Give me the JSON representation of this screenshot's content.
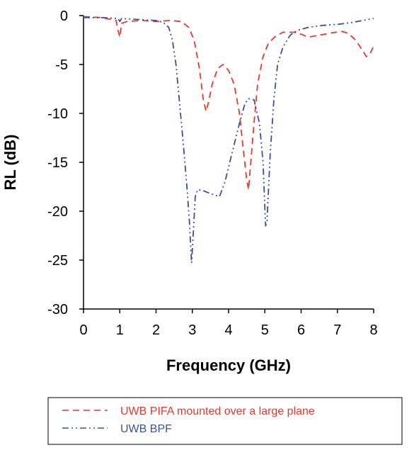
{
  "chart_data": {
    "type": "line",
    "title": "",
    "xlabel": "Frequency (GHz)",
    "ylabel": "RL (dB)",
    "xlim": [
      0,
      8
    ],
    "ylim": [
      -30,
      0
    ],
    "x_ticks": [
      "0",
      "1",
      "2",
      "3",
      "4",
      "5",
      "6",
      "7",
      "8"
    ],
    "y_ticks": [
      "0",
      "-5",
      "-10",
      "-15",
      "-20",
      "-25",
      "-30"
    ],
    "grid": false,
    "legend_position": "bottom",
    "series": [
      {
        "name": "UWB PIFA mounted over a large plane",
        "color": "#e8372f",
        "dash": "dashed",
        "points": [
          [
            0,
            -0.1
          ],
          [
            0.5,
            -0.2
          ],
          [
            0.9,
            -0.5
          ],
          [
            0.95,
            -1.5
          ],
          [
            1.0,
            -2.2
          ],
          [
            1.05,
            -0.8
          ],
          [
            1.2,
            -0.6
          ],
          [
            1.6,
            -0.5
          ],
          [
            2.0,
            -0.6
          ],
          [
            2.4,
            -0.5
          ],
          [
            2.7,
            -0.6
          ],
          [
            2.9,
            -1.2
          ],
          [
            3.05,
            -2.5
          ],
          [
            3.2,
            -5.5
          ],
          [
            3.3,
            -8.5
          ],
          [
            3.38,
            -9.8
          ],
          [
            3.45,
            -8.8
          ],
          [
            3.55,
            -7.0
          ],
          [
            3.7,
            -5.4
          ],
          [
            3.85,
            -5.0
          ],
          [
            4.0,
            -5.6
          ],
          [
            4.15,
            -7.0
          ],
          [
            4.3,
            -10.0
          ],
          [
            4.4,
            -13.5
          ],
          [
            4.5,
            -16.8
          ],
          [
            4.55,
            -17.8
          ],
          [
            4.6,
            -15.5
          ],
          [
            4.7,
            -11.0
          ],
          [
            4.8,
            -7.0
          ],
          [
            4.95,
            -4.2
          ],
          [
            5.1,
            -2.8
          ],
          [
            5.3,
            -2.1
          ],
          [
            5.5,
            -1.7
          ],
          [
            5.8,
            -1.7
          ],
          [
            6.0,
            -1.9
          ],
          [
            6.2,
            -2.2
          ],
          [
            6.5,
            -2.0
          ],
          [
            6.8,
            -1.8
          ],
          [
            7.1,
            -1.6
          ],
          [
            7.3,
            -1.8
          ],
          [
            7.5,
            -2.5
          ],
          [
            7.7,
            -3.6
          ],
          [
            7.8,
            -4.2
          ],
          [
            7.9,
            -3.9
          ],
          [
            8.0,
            -3.1
          ]
        ]
      },
      {
        "name": "UWB BPF",
        "color": "#3a4fa0",
        "dash": "dash-dot-dot",
        "points": [
          [
            0,
            -0.2
          ],
          [
            0.5,
            -0.2
          ],
          [
            0.95,
            -0.3
          ],
          [
            1.0,
            -0.6
          ],
          [
            1.05,
            -0.3
          ],
          [
            1.5,
            -0.4
          ],
          [
            2.0,
            -0.5
          ],
          [
            2.2,
            -0.7
          ],
          [
            2.35,
            -1.2
          ],
          [
            2.45,
            -2.5
          ],
          [
            2.55,
            -5.0
          ],
          [
            2.65,
            -9.0
          ],
          [
            2.75,
            -13.0
          ],
          [
            2.85,
            -17.5
          ],
          [
            2.92,
            -21.0
          ],
          [
            2.98,
            -25.3
          ],
          [
            3.03,
            -22.0
          ],
          [
            3.08,
            -18.5
          ],
          [
            3.15,
            -17.8
          ],
          [
            3.3,
            -17.9
          ],
          [
            3.5,
            -18.2
          ],
          [
            3.75,
            -18.5
          ],
          [
            3.9,
            -17.0
          ],
          [
            4.1,
            -14.0
          ],
          [
            4.3,
            -11.0
          ],
          [
            4.45,
            -9.0
          ],
          [
            4.55,
            -8.5
          ],
          [
            4.7,
            -8.6
          ],
          [
            4.85,
            -11.0
          ],
          [
            4.95,
            -15.0
          ],
          [
            5.02,
            -21.5
          ],
          [
            5.06,
            -21.0
          ],
          [
            5.15,
            -14.0
          ],
          [
            5.25,
            -8.5
          ],
          [
            5.35,
            -5.0
          ],
          [
            5.5,
            -3.2
          ],
          [
            5.7,
            -2.0
          ],
          [
            5.9,
            -1.5
          ],
          [
            6.2,
            -1.2
          ],
          [
            6.6,
            -1.0
          ],
          [
            7.0,
            -0.9
          ],
          [
            7.4,
            -0.7
          ],
          [
            7.7,
            -0.5
          ],
          [
            8.0,
            -0.3
          ]
        ]
      }
    ]
  }
}
